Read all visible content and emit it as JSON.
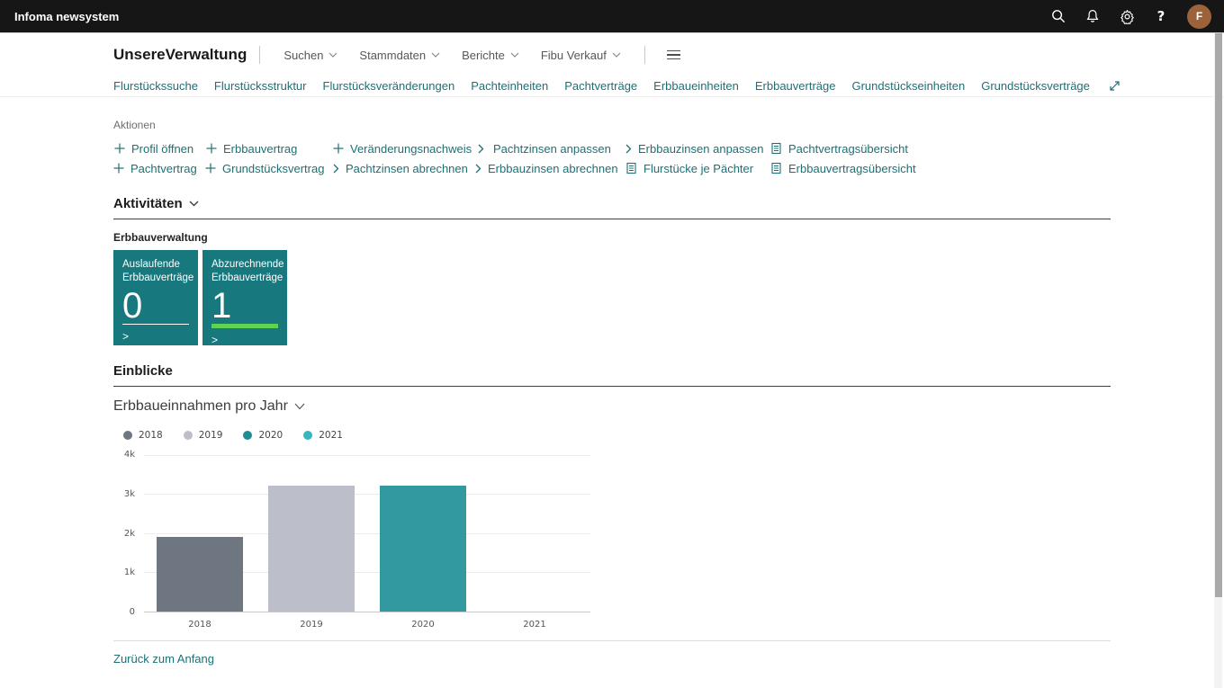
{
  "colors": {
    "accent_teal": "#17787e",
    "link_teal": "#1d7076",
    "tile_green": "#5fd453",
    "topbar_bg": "#161616",
    "avatar_bg": "#9c6239"
  },
  "topbar": {
    "app_name": "Infoma newsystem",
    "icons": [
      "search-icon",
      "notifications-icon",
      "settings-icon",
      "help-icon"
    ],
    "help_label": "?",
    "avatar_initial": "F"
  },
  "nav": {
    "title": "UnsereVerwaltung",
    "menus": [
      "Suchen",
      "Stammdaten",
      "Berichte",
      "Fibu Verkauf"
    ],
    "links": [
      "Flurstückssuche",
      "Flurstücksstruktur",
      "Flurstücksveränderungen",
      "Pachteinheiten",
      "Pachtverträge",
      "Erbbaueinheiten",
      "Erbbauverträge",
      "Grundstückseinheiten",
      "Grundstücksverträge"
    ],
    "expand_icon": "expand-diagonal-icon"
  },
  "actions": {
    "caption": "Aktionen",
    "columns": [
      [
        {
          "icon": "plus",
          "label": "Profil öffnen"
        },
        {
          "icon": "plus",
          "label": "Pachtvertrag"
        }
      ],
      [
        {
          "icon": "plus",
          "label": "Erbbauvertrag"
        },
        {
          "icon": "plus",
          "label": "Grundstücksvertrag"
        }
      ],
      [
        {
          "icon": "plus",
          "label": "Veränderungsnachweis"
        },
        {
          "icon": "chevron",
          "label": "Pachtzinsen abrechnen"
        }
      ],
      [
        {
          "icon": "chevron",
          "label": "Pachtzinsen anpassen"
        },
        {
          "icon": "chevron",
          "label": "Erbbauzinsen abrechnen"
        }
      ],
      [
        {
          "icon": "chevron",
          "label": "Erbbauzinsen anpassen"
        },
        {
          "icon": "report",
          "label": "Flurstücke je Pächter"
        }
      ],
      [
        {
          "icon": "report",
          "label": "Pachtvertragsübersicht"
        },
        {
          "icon": "report",
          "label": "Erbbauvertragsübersicht"
        }
      ]
    ]
  },
  "activities": {
    "heading": "Aktivitäten",
    "group": "Erbbauverwaltung",
    "tile_color": "#17787e",
    "tiles": [
      {
        "label": "Auslaufende Erbbauverträge",
        "value": "0",
        "underline_color": "#ffffff",
        "underline_height": 1
      },
      {
        "label": "Abzurechnende Erbbauverträge",
        "value": "1",
        "underline_color": "#5fd453",
        "underline_height": 5
      }
    ]
  },
  "insights": {
    "heading": "Einblicke",
    "chart_title": "Erbbaueinnahmen pro Jahr"
  },
  "chart_data": {
    "type": "bar",
    "title": "Erbbaueinnahmen pro Jahr",
    "categories": [
      "2018",
      "2019",
      "2020",
      "2021"
    ],
    "values": [
      1900,
      3200,
      3210,
      0
    ],
    "series_colors": [
      "#6d7681",
      "#bcbfc9",
      "#31999f",
      "#36b7bd"
    ],
    "xlabel": "",
    "ylabel": "",
    "ylim": [
      0,
      4000
    ],
    "yticks": [
      0,
      1000,
      2000,
      3000,
      4000
    ],
    "ytick_labels": [
      "0",
      "1k",
      "2k",
      "3k",
      "4k"
    ],
    "grid": true,
    "legend_position": "top",
    "legend": [
      {
        "label": "2018",
        "color": "#6d7681"
      },
      {
        "label": "2019",
        "color": "#bcbfc9"
      },
      {
        "label": "2020",
        "color": "#1e8e93"
      },
      {
        "label": "2021",
        "color": "#36b7bd"
      }
    ]
  },
  "footer": {
    "back_to_top": "Zurück zum Anfang"
  }
}
